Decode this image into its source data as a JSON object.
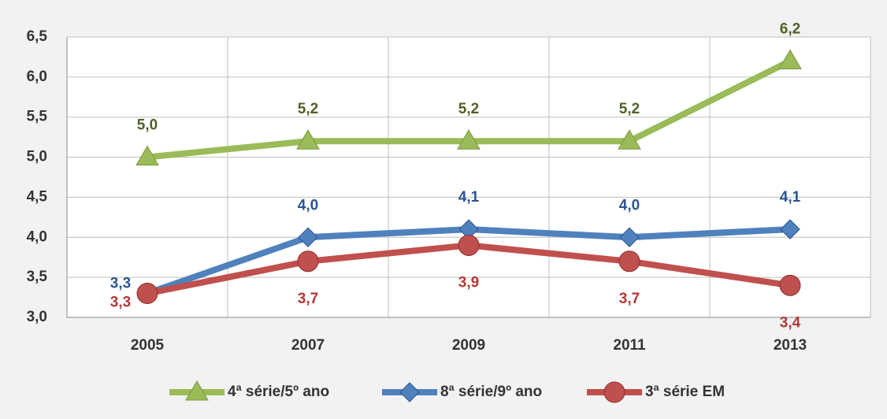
{
  "chart_data": {
    "type": "line",
    "categories": [
      "2005",
      "2007",
      "2009",
      "2011",
      "2013"
    ],
    "series": [
      {
        "name": "4ª série/5º ano",
        "color": "#9bbb59",
        "label_color": "#4f6228",
        "marker": "triangle",
        "values": [
          5.0,
          5.2,
          5.2,
          5.2,
          6.2
        ],
        "value_labels": [
          "5,0",
          "5,2",
          "5,2",
          "5,2",
          "6,2"
        ]
      },
      {
        "name": "8ª série/9º ano",
        "color": "#4f81bd",
        "label_color": "#2c5491",
        "marker": "diamond",
        "values": [
          3.3,
          4.0,
          4.1,
          4.0,
          4.1
        ],
        "value_labels": [
          "3,3",
          "4,0",
          "4,1",
          "4,0",
          "4,1"
        ]
      },
      {
        "name": "3ª série EM",
        "color": "#c0504d",
        "label_color": "#b03a37",
        "marker": "circle",
        "values": [
          3.3,
          3.7,
          3.9,
          3.7,
          3.4
        ],
        "value_labels": [
          "3,3",
          "3,7",
          "3,9",
          "3,7",
          "3,4"
        ]
      }
    ],
    "ylim": [
      3.0,
      6.5
    ],
    "yticks": [
      {
        "value": 3.0,
        "label": "3,0"
      },
      {
        "value": 3.5,
        "label": "3,5"
      },
      {
        "value": 4.0,
        "label": "4,0"
      },
      {
        "value": 4.5,
        "label": "4,5"
      },
      {
        "value": 5.0,
        "label": "5,0"
      },
      {
        "value": 5.5,
        "label": "5,5"
      },
      {
        "value": 6.0,
        "label": "6,0"
      },
      {
        "value": 6.5,
        "label": "6,5"
      }
    ],
    "grid": true,
    "legend": "bottom"
  }
}
